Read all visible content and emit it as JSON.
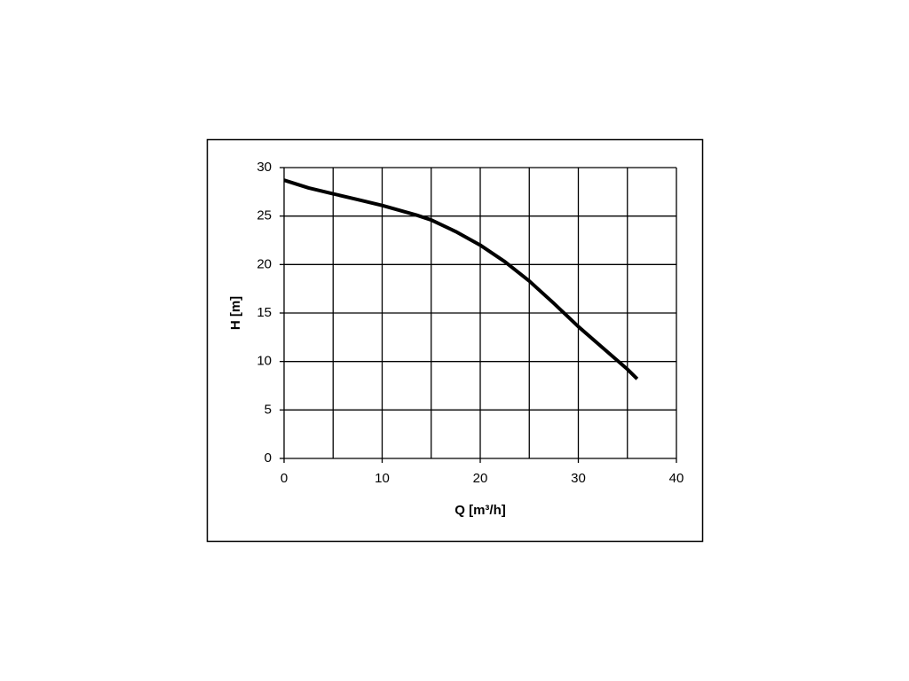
{
  "chart_data": {
    "type": "line",
    "xlabel": "Q [m³/h]",
    "ylabel": "H [m]",
    "x": [
      0,
      2.5,
      5,
      7.5,
      10,
      13.5,
      15,
      17.5,
      20,
      22.5,
      25,
      27.5,
      30,
      32.5,
      35,
      36
    ],
    "series": [
      {
        "color": "#000000",
        "values": [
          28.7,
          27.9,
          27.3,
          26.7,
          26.1,
          25.1,
          24.6,
          23.4,
          22.0,
          20.3,
          18.3,
          16.0,
          13.6,
          11.4,
          9.2,
          8.2
        ]
      }
    ],
    "xlim": [
      0,
      40
    ],
    "xticks": [
      0,
      10,
      20,
      30,
      40
    ],
    "x_minor_grid": [
      5,
      15,
      25,
      35
    ],
    "ylim": [
      0,
      30
    ],
    "yticks": [
      0,
      5,
      10,
      15,
      20,
      25,
      30
    ],
    "grid": true
  }
}
